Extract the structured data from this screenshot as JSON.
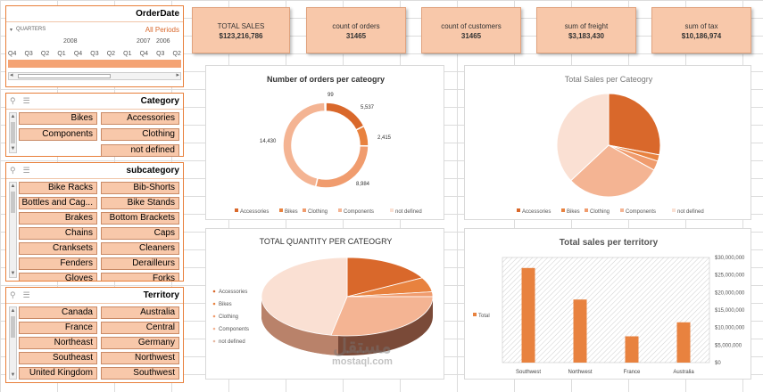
{
  "colors": {
    "accessories": "#d9682b",
    "bikes": "#e8823f",
    "clothing": "#f09c6e",
    "components": "#f4b493",
    "notdefined": "#fae0d3",
    "slicer_btn": "#f8c8aa",
    "accent": "#e87f3a"
  },
  "date_slicer": {
    "title": "OrderDate",
    "level": "QUARTERS",
    "all_periods": "All Periods",
    "years": [
      "2008",
      "2007",
      "2006"
    ],
    "quarters": [
      "Q4",
      "Q3",
      "Q2",
      "Q1",
      "Q4",
      "Q3",
      "Q2",
      "Q1",
      "Q4",
      "Q3",
      "Q2"
    ]
  },
  "category_slicer": {
    "title": "Category",
    "items": [
      "Bikes",
      "Accessories",
      "Components",
      "Clothing",
      "",
      "not defined"
    ]
  },
  "subcategory_slicer": {
    "title": "subcategory",
    "items": [
      "Bike Racks",
      "Bib-Shorts",
      "Bottles and Cag...",
      "Bike Stands",
      "Brakes",
      "Bottom Brackets",
      "Chains",
      "Caps",
      "Cranksets",
      "Cleaners",
      "Fenders",
      "Derailleurs",
      "Gloves",
      "Forks"
    ]
  },
  "territory_slicer": {
    "title": "Territory",
    "items": [
      "Canada",
      "Australia",
      "France",
      "Central",
      "Northeast",
      "Germany",
      "Southeast",
      "Northwest",
      "United Kingdom",
      "Southwest"
    ]
  },
  "kpis": [
    {
      "label": "TOTAL SALES",
      "value": "$123,216,786"
    },
    {
      "label": "count of orders",
      "value": "31465"
    },
    {
      "label": "count of customers",
      "value": "31465"
    },
    {
      "label": "sum of freight",
      "value": "$3,183,430"
    },
    {
      "label": "sum of tax",
      "value": "$10,186,974"
    }
  ],
  "chart_data": [
    {
      "type": "pie",
      "variant": "doughnut",
      "title": "Number of orders per cateogry",
      "categories": [
        "Accessories",
        "Bikes",
        "Clothing",
        "Components",
        "not defined"
      ],
      "values": [
        5537,
        2415,
        8984,
        14430,
        99
      ],
      "data_labels": [
        "5,537",
        "2,415",
        "8,984",
        "14,430",
        "99"
      ],
      "legend": "bottom"
    },
    {
      "type": "pie",
      "title": "Total Sales per Cateogry",
      "categories": [
        "Accessories",
        "Bikes",
        "Clothing",
        "Components",
        "not defined"
      ],
      "values": [
        28,
        2,
        3,
        30,
        37
      ],
      "legend": "bottom"
    },
    {
      "type": "pie",
      "variant": "3d",
      "title": "TOTAL QUANTITY PER CATEOGRY",
      "categories": [
        "Accessories",
        "Bikes",
        "Clothing",
        "Components",
        "not defined"
      ],
      "values": [
        17,
        6,
        2,
        28,
        47
      ],
      "legend": "left"
    },
    {
      "type": "bar",
      "title": "Total sales per territory",
      "categories": [
        "Southwest",
        "Northwest",
        "France",
        "Australia"
      ],
      "series": [
        {
          "name": "Total",
          "values": [
            27000000,
            18000000,
            7500000,
            11500000
          ]
        }
      ],
      "ylim": [
        0,
        30000000
      ],
      "yticks": [
        "$0",
        "$5,000,000",
        "$10,000,000",
        "$15,000,000",
        "$20,000,000",
        "$25,000,000",
        "$30,000,000"
      ],
      "legend": "left"
    }
  ],
  "watermark": {
    "arabic": "مستقل",
    "latin": "mostaql.com"
  }
}
